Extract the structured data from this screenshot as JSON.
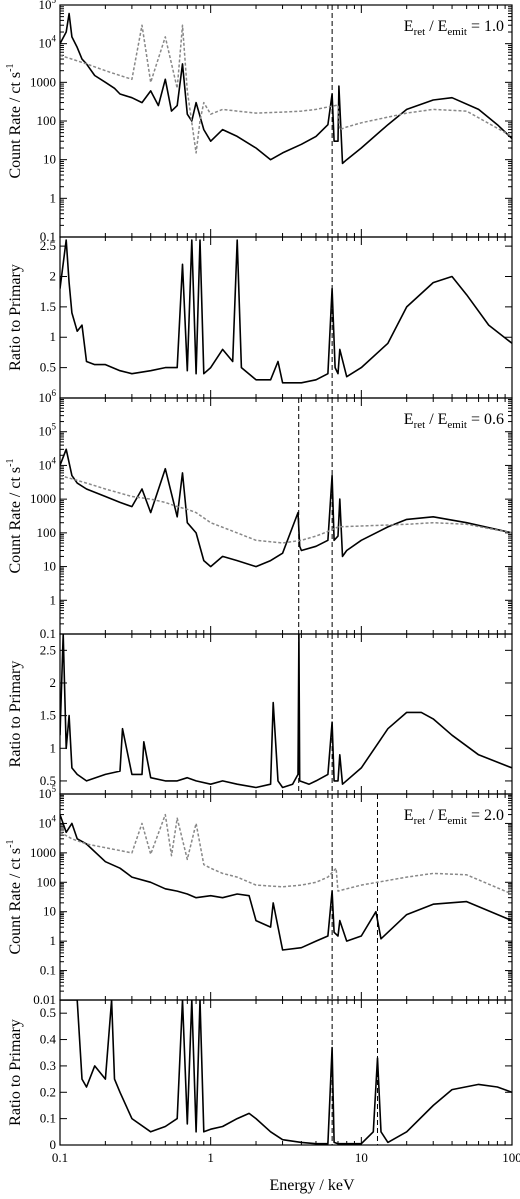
{
  "chart_data": [
    {
      "type": "line",
      "panel": "count-rate",
      "annotation": {
        "main_a": "E",
        "sub_a": "ret",
        "sep": " / E",
        "sub_b": "emit",
        "value": " = 1.0"
      },
      "ylabel": "Count Rate / ct s",
      "ylabel_sup": "-1",
      "yscale": "log",
      "ylim": [
        0.1,
        100000
      ],
      "xscale": "log",
      "xlim": [
        0.1,
        100
      ],
      "yticks": [
        {
          "value": 0.1,
          "label": "0.1"
        },
        {
          "value": 1,
          "label": "1"
        },
        {
          "value": 10,
          "label": "10"
        },
        {
          "value": 100,
          "label": "100"
        },
        {
          "value": 1000,
          "label": "1000"
        },
        {
          "value": 10000,
          "label": "10",
          "sup": "4"
        },
        {
          "value": 100000,
          "label": "10",
          "sup": "5"
        }
      ],
      "vlines": [
        6.4
      ],
      "series": [
        {
          "style": "solid",
          "color": "#000000",
          "x": [
            0.1,
            0.11,
            0.115,
            0.12,
            0.13,
            0.14,
            0.15,
            0.17,
            0.2,
            0.23,
            0.25,
            0.3,
            0.35,
            0.4,
            0.45,
            0.5,
            0.55,
            0.6,
            0.65,
            0.7,
            0.75,
            0.8,
            0.9,
            1.0,
            1.2,
            1.5,
            2.0,
            2.5,
            3.0,
            4.0,
            5.0,
            6.0,
            6.4,
            6.6,
            7.0,
            7.1,
            7.5,
            8.0,
            10,
            15,
            20,
            30,
            40,
            60,
            80,
            100
          ],
          "y": [
            10000,
            20000,
            60000,
            15000,
            8000,
            4000,
            3000,
            1500,
            1000,
            700,
            500,
            400,
            300,
            600,
            250,
            1200,
            180,
            250,
            3000,
            150,
            100,
            300,
            60,
            30,
            60,
            40,
            20,
            10,
            15,
            25,
            40,
            80,
            500,
            30,
            30,
            800,
            8,
            10,
            20,
            80,
            200,
            350,
            400,
            200,
            80,
            35
          ]
        },
        {
          "style": "dashed",
          "color": "#888888",
          "x": [
            0.1,
            0.12,
            0.15,
            0.2,
            0.25,
            0.3,
            0.35,
            0.4,
            0.5,
            0.6,
            0.65,
            0.7,
            0.8,
            0.85,
            0.9,
            1.0,
            1.2,
            1.5,
            2.0,
            3.0,
            4.0,
            5.0,
            6.0,
            7.0,
            7.2,
            8.0,
            10,
            20,
            30,
            50,
            100
          ],
          "y": [
            5000,
            4000,
            3000,
            2000,
            1500,
            1200,
            30000,
            1000,
            15000,
            700,
            30000,
            600,
            15,
            100,
            300,
            150,
            200,
            180,
            160,
            170,
            180,
            200,
            230,
            260,
            60,
            70,
            90,
            160,
            200,
            180,
            40
          ]
        }
      ]
    },
    {
      "type": "line",
      "panel": "ratio",
      "ylabel": "Ratio to Primary",
      "yscale": "linear",
      "ylim": [
        0,
        2.65
      ],
      "xscale": "log",
      "xlim": [
        0.1,
        100
      ],
      "yticks": [
        {
          "value": 0.5,
          "label": "0.5"
        },
        {
          "value": 1,
          "label": "1"
        },
        {
          "value": 1.5,
          "label": "1.5"
        },
        {
          "value": 2,
          "label": "2"
        },
        {
          "value": 2.5,
          "label": "2.5"
        }
      ],
      "vlines": [
        6.4
      ],
      "series": [
        {
          "style": "solid",
          "color": "#000000",
          "x": [
            0.1,
            0.11,
            0.115,
            0.12,
            0.13,
            0.14,
            0.15,
            0.17,
            0.2,
            0.25,
            0.3,
            0.4,
            0.5,
            0.6,
            0.65,
            0.7,
            0.75,
            0.8,
            0.85,
            0.9,
            1.0,
            1.2,
            1.4,
            1.5,
            1.6,
            2.0,
            2.5,
            2.8,
            3.0,
            4.0,
            5.0,
            6.0,
            6.4,
            6.7,
            7.0,
            7.2,
            8.0,
            10,
            15,
            20,
            30,
            40,
            50,
            70,
            100
          ],
          "y": [
            1.8,
            2.6,
            1.9,
            1.4,
            1.1,
            1.2,
            0.6,
            0.55,
            0.55,
            0.45,
            0.4,
            0.45,
            0.5,
            0.5,
            2.2,
            0.45,
            2.6,
            0.4,
            2.6,
            0.4,
            0.5,
            0.8,
            0.6,
            2.6,
            0.5,
            0.3,
            0.3,
            0.6,
            0.25,
            0.25,
            0.3,
            0.4,
            1.8,
            0.5,
            0.4,
            0.8,
            0.35,
            0.5,
            0.9,
            1.5,
            1.9,
            2.0,
            1.7,
            1.2,
            0.9
          ]
        }
      ]
    },
    {
      "type": "line",
      "panel": "count-rate",
      "annotation": {
        "main_a": "E",
        "sub_a": "ret",
        "sep": " / E",
        "sub_b": "emit",
        "value": " = 0.6"
      },
      "ylabel": "Count Rate / ct s",
      "ylabel_sup": "-1",
      "yscale": "log",
      "ylim": [
        0.1,
        1000000
      ],
      "xscale": "log",
      "xlim": [
        0.1,
        100
      ],
      "yticks": [
        {
          "value": 0.1,
          "label": "0.1"
        },
        {
          "value": 1,
          "label": "1"
        },
        {
          "value": 10,
          "label": "10"
        },
        {
          "value": 100,
          "label": "100"
        },
        {
          "value": 1000,
          "label": "1000"
        },
        {
          "value": 10000,
          "label": "10",
          "sup": "4"
        },
        {
          "value": 100000,
          "label": "10",
          "sup": "5"
        },
        {
          "value": 1000000,
          "label": "10",
          "sup": "6"
        }
      ],
      "vlines": [
        3.84,
        6.4
      ],
      "series": [
        {
          "style": "solid",
          "color": "#000000",
          "x": [
            0.1,
            0.11,
            0.12,
            0.13,
            0.15,
            0.2,
            0.25,
            0.3,
            0.35,
            0.4,
            0.5,
            0.6,
            0.65,
            0.7,
            0.8,
            0.9,
            1.0,
            1.2,
            1.5,
            2.0,
            2.5,
            3.0,
            3.8,
            3.9,
            4.0,
            5.0,
            6.0,
            6.4,
            6.6,
            7.0,
            7.2,
            7.5,
            8.0,
            10,
            15,
            20,
            30,
            50,
            100
          ],
          "y": [
            10000,
            30000,
            5000,
            3000,
            2000,
            1200,
            800,
            600,
            2000,
            400,
            8000,
            300,
            6000,
            200,
            100,
            15,
            10,
            20,
            15,
            10,
            15,
            25,
            400,
            40,
            30,
            40,
            60,
            5000,
            60,
            80,
            1000,
            20,
            30,
            60,
            150,
            250,
            300,
            200,
            100
          ]
        },
        {
          "style": "dashed",
          "color": "#888888",
          "x": [
            0.1,
            0.12,
            0.15,
            0.2,
            0.3,
            0.4,
            0.5,
            0.6,
            0.7,
            0.8,
            1.0,
            1.5,
            2.0,
            3.0,
            4.0,
            5.0,
            6.0,
            7.0,
            10,
            20,
            30,
            50,
            100
          ],
          "y": [
            5000,
            4000,
            3000,
            2000,
            1200,
            1000,
            800,
            600,
            500,
            400,
            200,
            100,
            60,
            50,
            60,
            80,
            110,
            150,
            160,
            180,
            200,
            180,
            100
          ]
        }
      ]
    },
    {
      "type": "line",
      "panel": "ratio",
      "ylabel": "Ratio to Primary",
      "yscale": "linear",
      "ylim": [
        0.3,
        2.75
      ],
      "xscale": "log",
      "xlim": [
        0.1,
        100
      ],
      "yticks": [
        {
          "value": 0.5,
          "label": "0.5"
        },
        {
          "value": 1,
          "label": "1"
        },
        {
          "value": 1.5,
          "label": "1.5"
        },
        {
          "value": 2,
          "label": "2"
        },
        {
          "value": 2.5,
          "label": "2.5"
        }
      ],
      "vlines": [
        3.84,
        6.4
      ],
      "series": [
        {
          "style": "solid",
          "color": "#000000",
          "x": [
            0.1,
            0.105,
            0.11,
            0.115,
            0.12,
            0.13,
            0.15,
            0.2,
            0.25,
            0.26,
            0.3,
            0.35,
            0.36,
            0.4,
            0.5,
            0.6,
            0.7,
            0.8,
            1.0,
            1.2,
            1.5,
            2.0,
            2.5,
            2.6,
            2.8,
            3.0,
            3.5,
            3.8,
            3.85,
            3.9,
            4.5,
            5.0,
            6.0,
            6.4,
            6.6,
            7.0,
            7.2,
            7.5,
            10,
            15,
            20,
            25,
            30,
            40,
            60,
            100
          ],
          "y": [
            1.2,
            2.75,
            1.0,
            1.5,
            0.7,
            0.6,
            0.5,
            0.6,
            0.65,
            1.3,
            0.6,
            0.6,
            1.1,
            0.55,
            0.5,
            0.5,
            0.55,
            0.5,
            0.45,
            0.5,
            0.45,
            0.4,
            0.45,
            1.7,
            0.5,
            0.4,
            0.45,
            0.6,
            2.75,
            0.5,
            0.45,
            0.5,
            0.6,
            1.4,
            0.5,
            0.5,
            0.9,
            0.45,
            0.7,
            1.3,
            1.55,
            1.55,
            1.45,
            1.2,
            0.9,
            0.7
          ]
        }
      ]
    },
    {
      "type": "line",
      "panel": "count-rate",
      "annotation": {
        "main_a": "E",
        "sub_a": "ret",
        "sep": " / E",
        "sub_b": "emit",
        "value": " = 2.0"
      },
      "ylabel": "Count Rate / ct s",
      "ylabel_sup": "-1",
      "yscale": "log",
      "ylim": [
        0.01,
        100000
      ],
      "xscale": "log",
      "xlim": [
        0.1,
        100
      ],
      "yticks": [
        {
          "value": 0.01,
          "label": "0.01"
        },
        {
          "value": 0.1,
          "label": "0.1"
        },
        {
          "value": 1,
          "label": "1"
        },
        {
          "value": 10,
          "label": "10"
        },
        {
          "value": 100,
          "label": "100"
        },
        {
          "value": 1000,
          "label": "1000"
        },
        {
          "value": 10000,
          "label": "10",
          "sup": "4"
        },
        {
          "value": 100000,
          "label": "10",
          "sup": "5"
        }
      ],
      "vlines": [
        6.4,
        12.8
      ],
      "series": [
        {
          "style": "solid",
          "color": "#000000",
          "x": [
            0.1,
            0.11,
            0.12,
            0.13,
            0.15,
            0.2,
            0.25,
            0.3,
            0.4,
            0.5,
            0.6,
            0.7,
            0.8,
            1.0,
            1.2,
            1.5,
            1.8,
            2.0,
            2.5,
            2.6,
            3.0,
            4.0,
            5.0,
            6.0,
            6.4,
            6.6,
            7.0,
            7.2,
            8.0,
            10,
            12.5,
            13.5,
            15,
            20,
            30,
            50,
            100
          ],
          "y": [
            20000,
            5000,
            10000,
            3000,
            2000,
            500,
            300,
            150,
            100,
            60,
            50,
            40,
            30,
            35,
            30,
            40,
            35,
            5,
            3,
            20,
            0.5,
            0.6,
            1.0,
            1.5,
            50,
            2,
            1.5,
            5,
            1.0,
            1.5,
            10,
            1.2,
            2,
            8,
            18,
            22,
            5
          ]
        },
        {
          "style": "dashed",
          "color": "#888888",
          "x": [
            0.1,
            0.12,
            0.15,
            0.2,
            0.3,
            0.35,
            0.4,
            0.5,
            0.55,
            0.6,
            0.7,
            0.8,
            0.9,
            1.0,
            1.2,
            1.5,
            2.0,
            3.0,
            4.0,
            5.0,
            6.0,
            6.8,
            7.0,
            8.0,
            10,
            20,
            30,
            50,
            100
          ],
          "y": [
            5000,
            3000,
            2000,
            1500,
            1000,
            10000,
            900,
            20000,
            800,
            15000,
            600,
            10000,
            400,
            300,
            200,
            150,
            80,
            70,
            80,
            100,
            150,
            300,
            50,
            60,
            80,
            150,
            200,
            180,
            40
          ]
        }
      ]
    },
    {
      "type": "line",
      "panel": "ratio",
      "ylabel": "Ratio to Primary",
      "yscale": "linear",
      "ylim": [
        0,
        0.55
      ],
      "xscale": "log",
      "xlim": [
        0.1,
        100
      ],
      "yticks": [
        {
          "value": 0,
          "label": "0"
        },
        {
          "value": 0.1,
          "label": "0.1"
        },
        {
          "value": 0.2,
          "label": "0.2"
        },
        {
          "value": 0.3,
          "label": "0.3"
        },
        {
          "value": 0.4,
          "label": "0.4"
        },
        {
          "value": 0.5,
          "label": "0.5"
        }
      ],
      "vlines": [
        6.4,
        12.8
      ],
      "series": [
        {
          "style": "solid",
          "color": "#000000",
          "x": [
            0.1,
            0.13,
            0.14,
            0.15,
            0.17,
            0.2,
            0.22,
            0.23,
            0.25,
            0.3,
            0.4,
            0.5,
            0.6,
            0.65,
            0.7,
            0.75,
            0.8,
            0.85,
            0.9,
            1.0,
            1.2,
            1.5,
            1.8,
            2.0,
            2.5,
            3.0,
            4.0,
            5.0,
            6.0,
            6.4,
            6.6,
            7.0,
            8.0,
            10,
            12.0,
            12.8,
            13.5,
            15,
            20,
            30,
            40,
            60,
            80,
            100
          ],
          "y": [
            0.55,
            0.55,
            0.25,
            0.22,
            0.3,
            0.25,
            0.55,
            0.25,
            0.2,
            0.1,
            0.05,
            0.07,
            0.1,
            0.55,
            0.08,
            0.55,
            0.05,
            0.55,
            0.05,
            0.06,
            0.07,
            0.1,
            0.12,
            0.1,
            0.05,
            0.02,
            0.01,
            0.005,
            0.005,
            0.37,
            0.01,
            0.005,
            0.005,
            0.005,
            0.05,
            0.33,
            0.05,
            0.01,
            0.05,
            0.15,
            0.21,
            0.23,
            0.22,
            0.2
          ]
        }
      ]
    }
  ],
  "x_axis": {
    "label": "Energy / keV",
    "ticks": [
      {
        "value": 0.1,
        "label": "0.1"
      },
      {
        "value": 1,
        "label": "1"
      },
      {
        "value": 10,
        "label": "10"
      },
      {
        "value": 100,
        "label": "100"
      }
    ]
  }
}
